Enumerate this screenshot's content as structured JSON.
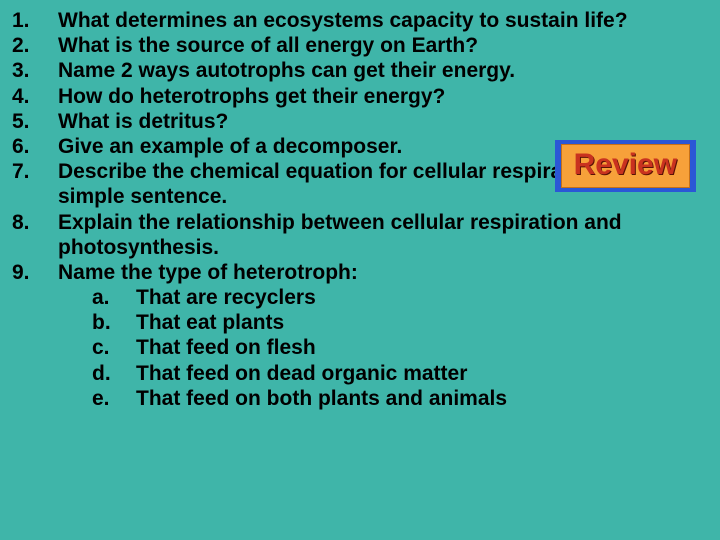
{
  "background_color": "#3fb5a9",
  "text_color": "#000000",
  "font_family": "Comic Sans MS",
  "font_size_pt": 21,
  "font_weight": "bold",
  "questions": [
    {
      "n": "1.",
      "t": "What determines an ecosystems capacity to sustain life?"
    },
    {
      "n": "2.",
      "t": "What is the source of all energy on Earth?"
    },
    {
      "n": "3.",
      "t": "Name 2 ways autotrophs can get their energy."
    },
    {
      "n": "4.",
      "t": "How do heterotrophs get their energy?"
    },
    {
      "n": "5.",
      "t": "What is detritus?"
    },
    {
      "n": "6.",
      "t": "Give an example of a decomposer."
    },
    {
      "n": "7.",
      "t": "Describe the chemical equation for cellular respiration using a simple sentence."
    },
    {
      "n": "8.",
      "t": "Explain the relationship between cellular respiration and photosynthesis."
    },
    {
      "n": "9.",
      "t": "Name the type of heterotroph:"
    }
  ],
  "subitems": [
    {
      "n": "a.",
      "t": "That are recyclers"
    },
    {
      "n": "b.",
      "t": "That eat plants"
    },
    {
      "n": "c.",
      "t": "That feed on flesh"
    },
    {
      "n": "d.",
      "t": "That feed on dead organic matter"
    },
    {
      "n": "e.",
      "t": "That feed on both plants and animals"
    }
  ],
  "badge": {
    "label": "Review",
    "outer_color": "#2b57d6",
    "inner_color": "#f7a13a",
    "text_color": "#c9321f",
    "font_size_pt": 30
  }
}
